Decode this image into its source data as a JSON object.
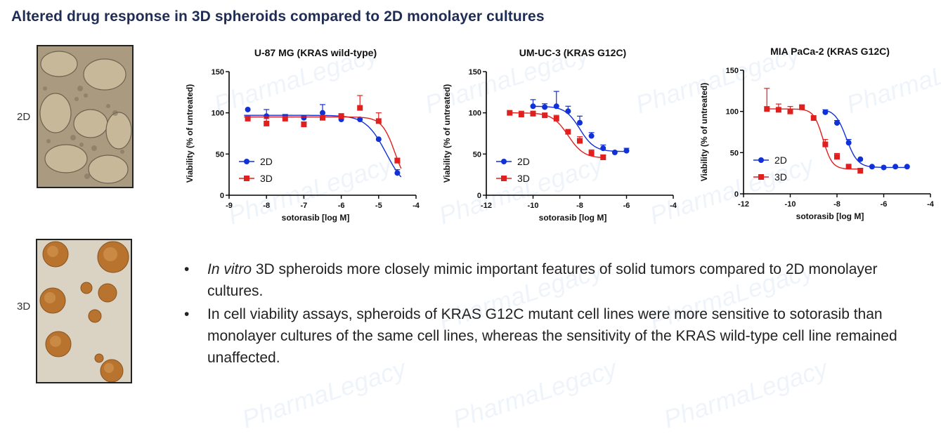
{
  "page_title": "Altered drug response in 3D spheroids compared to 2D monolayer cultures",
  "images": {
    "label_2d": "2D",
    "label_3d": "3D"
  },
  "watermark": "PharmaLegacy",
  "colors": {
    "series_2d": "#1030d8",
    "series_3d": "#e0201e",
    "title": "#1f2d55"
  },
  "chart_data": [
    {
      "type": "line",
      "title": "U-87 MG (KRAS wild-type)",
      "xlabel": "sotorasib [log M]",
      "ylabel": "Viability (% of untreated)",
      "xlim": [
        -9,
        -4
      ],
      "ylim": [
        0,
        150
      ],
      "xticks": [
        -9,
        -8,
        -7,
        -6,
        -5,
        -4
      ],
      "yticks": [
        0,
        50,
        100,
        150
      ],
      "legend": [
        "2D",
        "3D"
      ],
      "series": [
        {
          "name": "2D",
          "x": [
            -8.5,
            -8.0,
            -7.5,
            -7.0,
            -6.5,
            -6.0,
            -5.5,
            -5.0,
            -4.5
          ],
          "y": [
            104,
            96,
            95,
            94,
            100,
            92,
            92,
            68,
            27
          ],
          "err": [
            0,
            8,
            3,
            2,
            10,
            5,
            0,
            0,
            4
          ],
          "curve": {
            "top": 97,
            "bottom": 5,
            "ic50": -4.8,
            "hill": 1.6
          }
        },
        {
          "name": "3D",
          "x": [
            -8.5,
            -8.0,
            -7.5,
            -7.0,
            -6.5,
            -6.0,
            -5.5,
            -5.0,
            -4.5
          ],
          "y": [
            93,
            87,
            93,
            86,
            94,
            96,
            106,
            90,
            42
          ],
          "err": [
            0,
            6,
            0,
            3,
            0,
            3,
            15,
            10,
            3
          ],
          "curve": {
            "top": 95,
            "bottom": 5,
            "ic50": -4.55,
            "hill": 2.4
          }
        }
      ]
    },
    {
      "type": "line",
      "title": "UM-UC-3 (KRAS G12C)",
      "xlabel": "sotorasib [log M]",
      "ylabel": "Viability (% of untreated)",
      "xlim": [
        -12,
        -4
      ],
      "ylim": [
        0,
        150
      ],
      "xticks": [
        -12,
        -10,
        -8,
        -6,
        -4
      ],
      "yticks": [
        0,
        50,
        100,
        150
      ],
      "legend": [
        "2D",
        "3D"
      ],
      "series": [
        {
          "name": "2D",
          "x": [
            -10.0,
            -9.5,
            -9.0,
            -8.5,
            -8.0,
            -7.5,
            -7.0,
            -6.5,
            -6.0
          ],
          "y": [
            108,
            107,
            108,
            102,
            88,
            72,
            57,
            52,
            54
          ],
          "err": [
            8,
            4,
            18,
            6,
            8,
            4,
            4,
            0,
            3
          ],
          "curve": {
            "top": 108,
            "bottom": 53,
            "ic50": -8.0,
            "hill": 1.4
          }
        },
        {
          "name": "3D",
          "x": [
            -11.0,
            -10.5,
            -10.0,
            -9.5,
            -9.0,
            -8.5,
            -8.0,
            -7.5,
            -7.0
          ],
          "y": [
            100,
            98,
            99,
            97,
            93,
            77,
            66,
            51,
            46
          ],
          "err": [
            0,
            4,
            3,
            0,
            4,
            0,
            5,
            4,
            3
          ],
          "curve": {
            "top": 100,
            "bottom": 45,
            "ic50": -8.5,
            "hill": 1.3
          }
        }
      ]
    },
    {
      "type": "line",
      "title": "MIA PaCa-2 (KRAS G12C)",
      "xlabel": "sotorasib [log M]",
      "ylabel": "Viability (% of untreated)",
      "xlim": [
        -12,
        -4
      ],
      "ylim": [
        0,
        150
      ],
      "xticks": [
        -12,
        -10,
        -8,
        -6,
        -4
      ],
      "yticks": [
        0,
        50,
        100,
        150
      ],
      "legend": [
        "2D",
        "3D"
      ],
      "series": [
        {
          "name": "2D",
          "x": [
            -8.5,
            -8.0,
            -7.5,
            -7.0,
            -6.5,
            -6.0,
            -5.5,
            -5.0
          ],
          "y": [
            99,
            86,
            62,
            42,
            33,
            32,
            33,
            33
          ],
          "err": [
            3,
            3,
            4,
            0,
            0,
            0,
            0,
            0
          ],
          "curve": {
            "top": 103,
            "bottom": 32,
            "ic50": -7.6,
            "hill": 1.8
          }
        },
        {
          "name": "3D",
          "x": [
            -11.0,
            -10.5,
            -10.0,
            -9.5,
            -9.0,
            -8.5,
            -8.0,
            -7.5,
            -7.0
          ],
          "y": [
            103,
            102,
            100,
            105,
            92,
            60,
            45,
            33,
            28
          ],
          "err": [
            25,
            7,
            6,
            3,
            0,
            6,
            4,
            0,
            3
          ],
          "curve": {
            "top": 103,
            "bottom": 30,
            "ic50": -8.6,
            "hill": 2.2
          }
        }
      ]
    }
  ],
  "bullets": [
    {
      "italic": "In vitro",
      "text": " 3D spheroids more closely mimic important features of solid tumors compared to 2D monolayer cultures."
    },
    {
      "italic": "",
      "text": "In cell viability assays, spheroids of KRAS G12C mutant cell lines were more sensitive to sotorasib than monolayer cultures of the same cell lines, whereas the sensitivity of the KRAS wild-type cell line remained unaffected."
    }
  ],
  "bullet_glyph": "•"
}
